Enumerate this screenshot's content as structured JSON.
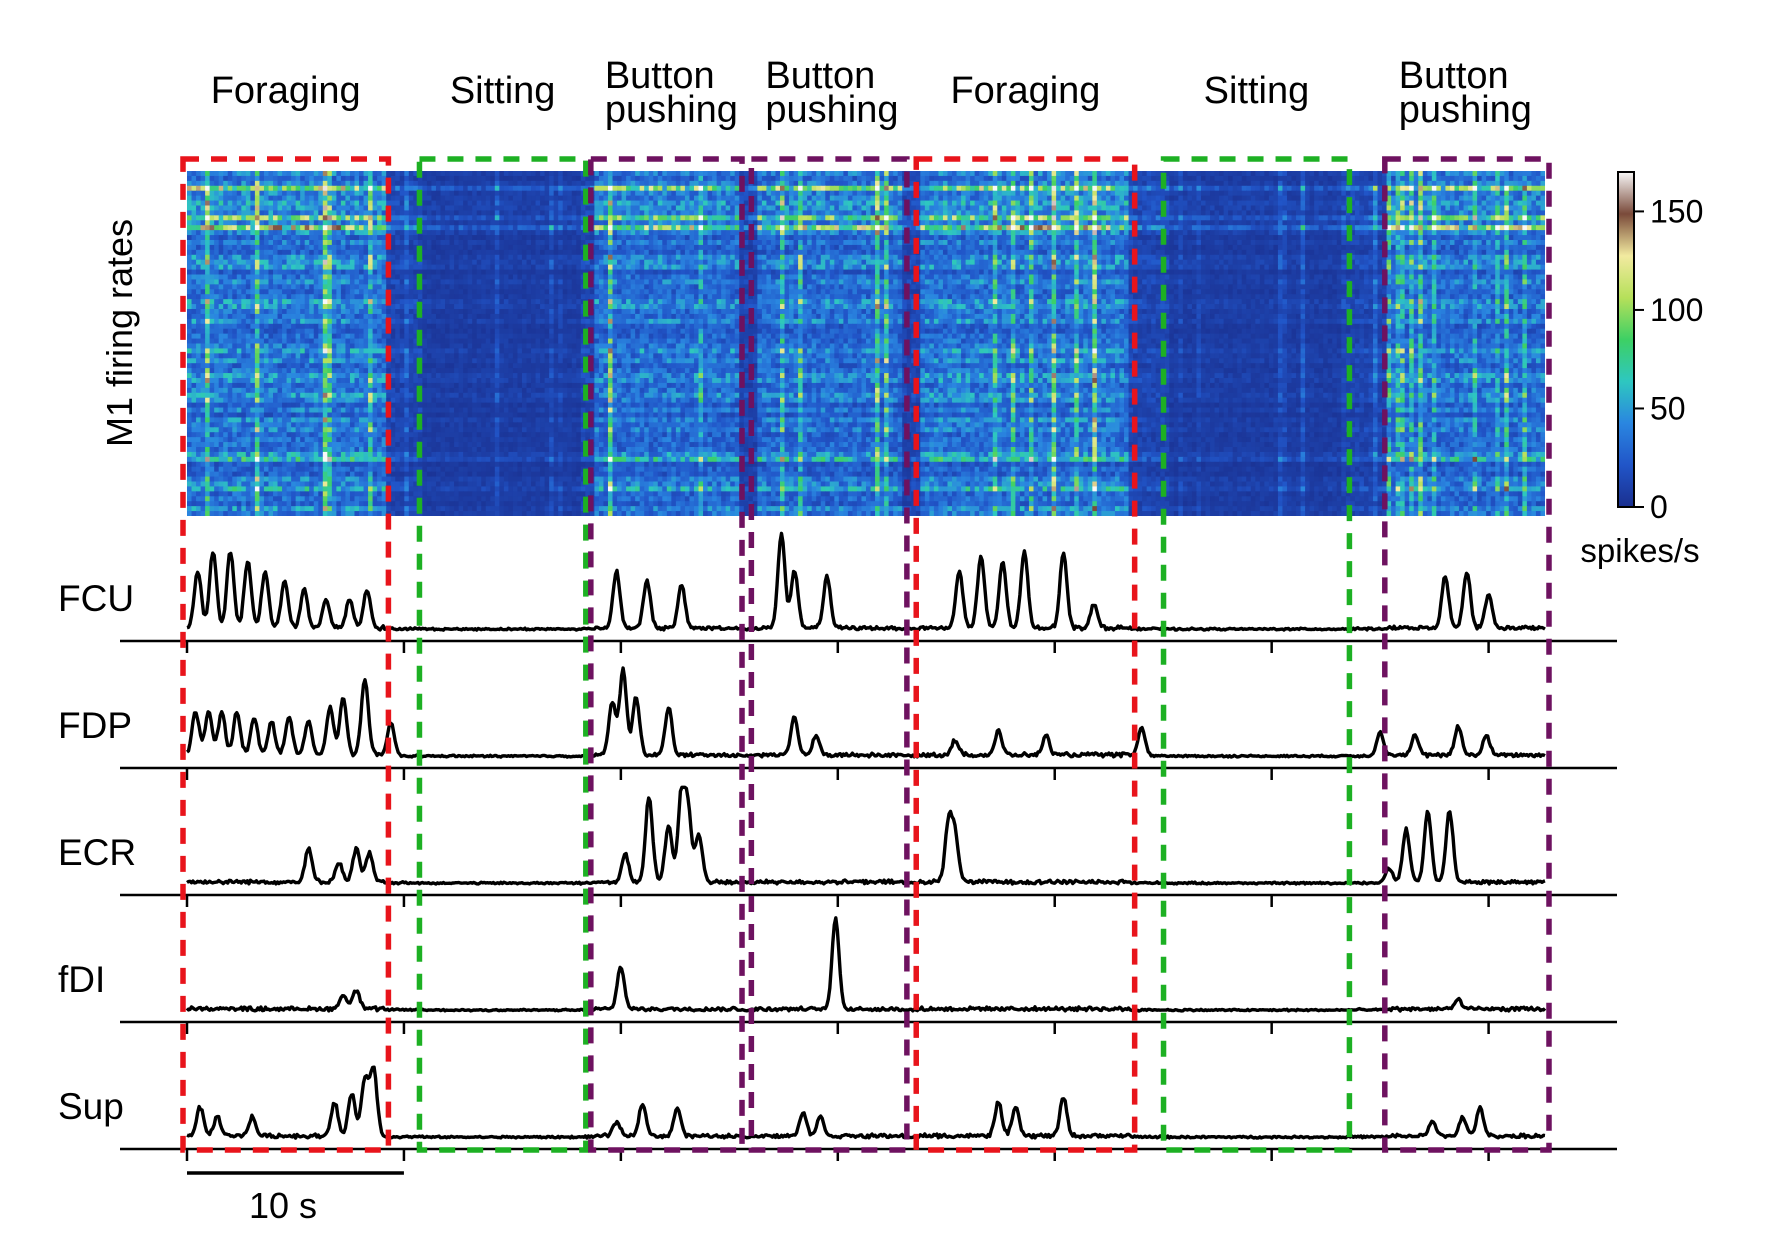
{
  "chart_data": {
    "type": "heatmap",
    "panels": [
      "M1 firing rates heatmap",
      "EMG traces"
    ],
    "heatmap": {
      "ylabel": "M1 firing rates",
      "colorbar": {
        "unit": "spikes/s",
        "range": [
          0,
          170
        ],
        "ticks": [
          0,
          50,
          100,
          150
        ],
        "tick_labels": [
          "0",
          "50",
          "100",
          "150"
        ],
        "colormap": [
          "#1a2f8f",
          "#2155c8",
          "#2a86e0",
          "#2ec7c0",
          "#3dd064",
          "#b6e05a",
          "#f2eaa0",
          "#7a4a3a",
          "#f8f8f8"
        ]
      }
    },
    "emg": {
      "channels": [
        "FCU",
        "FDP",
        "ECR",
        "fDI",
        "Sup"
      ]
    },
    "x_unit": "s",
    "x_range": [
      0,
      62.6
    ],
    "scale_bar": {
      "length": 10,
      "label": "10 s"
    },
    "tick_interval": 10,
    "epochs": [
      {
        "label": [
          "Foraging"
        ],
        "start": 0.0,
        "end": 9.1,
        "color": "#e8141b"
      },
      {
        "label": [
          "Sitting"
        ],
        "start": 10.9,
        "end": 18.2,
        "color": "#1db023"
      },
      {
        "label": [
          "Button",
          "pushing"
        ],
        "start": 18.8,
        "end": 25.4,
        "color": "#6e1260"
      },
      {
        "label": [
          "Button",
          "pushing"
        ],
        "start": 26.2,
        "end": 33.0,
        "color": "#6e1260"
      },
      {
        "label": [
          "Foraging"
        ],
        "start": 33.8,
        "end": 43.5,
        "color": "#e8141b"
      },
      {
        "label": [
          "Sitting"
        ],
        "start": 45.2,
        "end": 53.4,
        "color": "#1db023"
      },
      {
        "label": [
          "Button",
          "pushing"
        ],
        "start": 55.4,
        "end": 62.6,
        "color": "#6e1260"
      }
    ],
    "emg_envelope_peaks": {
      "FCU": [
        [
          0.5,
          0.6
        ],
        [
          1.2,
          0.8
        ],
        [
          2.0,
          0.8
        ],
        [
          2.8,
          0.7
        ],
        [
          3.6,
          0.6
        ],
        [
          4.5,
          0.5
        ],
        [
          5.4,
          0.4
        ],
        [
          6.4,
          0.3
        ],
        [
          7.5,
          0.3
        ],
        [
          8.3,
          0.4
        ],
        [
          19.8,
          0.6
        ],
        [
          21.2,
          0.5
        ],
        [
          22.8,
          0.45
        ],
        [
          27.4,
          1.0
        ],
        [
          28.0,
          0.6
        ],
        [
          29.5,
          0.55
        ],
        [
          35.6,
          0.6
        ],
        [
          36.6,
          0.75
        ],
        [
          37.6,
          0.7
        ],
        [
          38.6,
          0.8
        ],
        [
          40.4,
          0.8
        ],
        [
          41.8,
          0.25
        ],
        [
          58.0,
          0.55
        ],
        [
          59.0,
          0.6
        ],
        [
          60.0,
          0.35
        ]
      ],
      "FDP": [
        [
          0.4,
          0.45
        ],
        [
          1.0,
          0.45
        ],
        [
          1.6,
          0.45
        ],
        [
          2.3,
          0.45
        ],
        [
          3.1,
          0.4
        ],
        [
          3.9,
          0.35
        ],
        [
          4.7,
          0.4
        ],
        [
          5.6,
          0.35
        ],
        [
          6.6,
          0.5
        ],
        [
          7.2,
          0.6
        ],
        [
          8.2,
          0.8
        ],
        [
          9.4,
          0.35
        ],
        [
          19.6,
          0.55
        ],
        [
          20.1,
          0.9
        ],
        [
          20.7,
          0.6
        ],
        [
          22.2,
          0.5
        ],
        [
          28.0,
          0.4
        ],
        [
          29.0,
          0.2
        ],
        [
          35.4,
          0.15
        ],
        [
          37.4,
          0.25
        ],
        [
          39.6,
          0.2
        ],
        [
          44.0,
          0.3
        ],
        [
          55.0,
          0.25
        ],
        [
          56.6,
          0.2
        ],
        [
          58.6,
          0.3
        ],
        [
          59.9,
          0.2
        ]
      ],
      "ECR": [
        [
          5.6,
          0.35
        ],
        [
          7.0,
          0.2
        ],
        [
          7.8,
          0.35
        ],
        [
          8.4,
          0.3
        ],
        [
          20.2,
          0.3
        ],
        [
          21.3,
          0.9
        ],
        [
          22.2,
          0.6
        ],
        [
          22.8,
          0.95
        ],
        [
          23.1,
          0.7
        ],
        [
          23.6,
          0.5
        ],
        [
          35.1,
          0.6
        ],
        [
          35.4,
          0.5
        ],
        [
          55.4,
          0.15
        ],
        [
          56.2,
          0.55
        ],
        [
          57.2,
          0.75
        ],
        [
          58.2,
          0.75
        ]
      ],
      "fDI": [
        [
          7.2,
          0.15
        ],
        [
          7.8,
          0.2
        ],
        [
          20.0,
          0.45
        ],
        [
          29.9,
          0.95
        ],
        [
          58.6,
          0.1
        ]
      ],
      "Sup": [
        [
          0.6,
          0.3
        ],
        [
          1.4,
          0.2
        ],
        [
          3.0,
          0.2
        ],
        [
          6.8,
          0.35
        ],
        [
          7.6,
          0.45
        ],
        [
          8.2,
          0.6
        ],
        [
          8.6,
          0.7
        ],
        [
          19.8,
          0.15
        ],
        [
          21.0,
          0.35
        ],
        [
          22.6,
          0.3
        ],
        [
          28.4,
          0.25
        ],
        [
          29.2,
          0.2
        ],
        [
          37.4,
          0.35
        ],
        [
          38.2,
          0.3
        ],
        [
          40.4,
          0.4
        ],
        [
          57.4,
          0.15
        ],
        [
          58.8,
          0.2
        ],
        [
          59.6,
          0.3
        ]
      ]
    }
  }
}
